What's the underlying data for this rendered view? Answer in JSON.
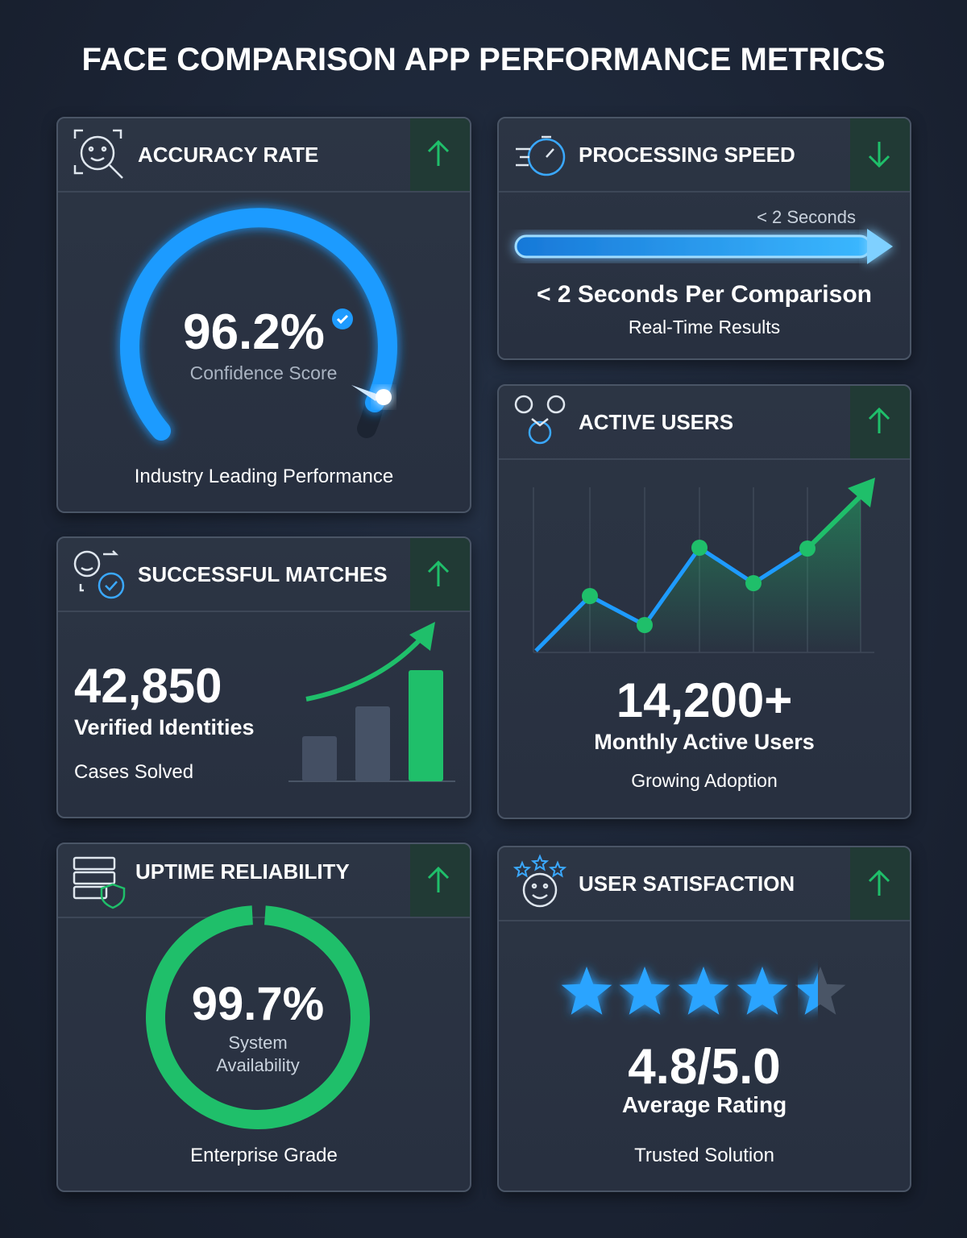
{
  "title": "FACE COMPARISON APP PERFORMANCE METRICS",
  "cards": [
    {
      "title": "ACCURACY RATE",
      "value": "96.2%",
      "caption": "Confidence Score",
      "footer": "Industry Leading Performance"
    },
    {
      "title": "PROCESSING SPEED",
      "scale_label": "< 2 Seconds",
      "value": "< 2 Seconds Per Comparison",
      "footer": "Real-Time Results"
    },
    {
      "title": "ACTIVE USERS",
      "value": "14,200+",
      "caption": "Monthly Active Users",
      "footer": "Growing Adoption"
    },
    {
      "title": "SUCCESSFUL MATCHES",
      "value": "42,850",
      "caption": "Verified Identities",
      "footer": "Cases Solved"
    },
    {
      "title": "UPTIME RELIABILITY",
      "value": "99.7%",
      "caption": "System Availability",
      "footer": "Enterprise Grade"
    },
    {
      "title": "USER SATISFACTION",
      "value": "4.8/5.0",
      "caption": "Average Rating",
      "footer": "Trusted Solution"
    }
  ]
}
